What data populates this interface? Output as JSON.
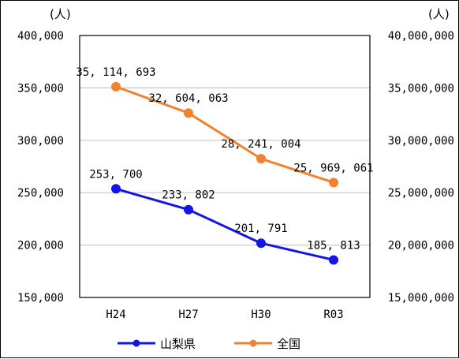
{
  "chart_data": {
    "type": "line",
    "categories": [
      "H24",
      "H27",
      "H30",
      "R03"
    ],
    "units": {
      "left": "(人)",
      "right": "(人)"
    },
    "y_left": {
      "lim": [
        150000,
        400000
      ],
      "ticks": [
        "150,000",
        "200,000",
        "250,000",
        "300,000",
        "350,000",
        "400,000"
      ]
    },
    "y_right": {
      "lim": [
        15000000,
        40000000
      ],
      "ticks": [
        "15,000,000",
        "20,000,000",
        "25,000,000",
        "30,000,000",
        "35,000,000",
        "40,000,000"
      ]
    },
    "grid": true,
    "legend_position": "bottom",
    "series": [
      {
        "name": "山梨県",
        "axis": "left",
        "color": "#1414e6",
        "values": [
          253700,
          233802,
          201791,
          185813
        ],
        "labels": [
          "253, 700",
          "233, 802",
          "201, 791",
          "185, 813"
        ]
      },
      {
        "name": "全国",
        "axis": "right",
        "color": "#f08232",
        "values": [
          35114693,
          32604063,
          28241004,
          25969061
        ],
        "labels": [
          "35, 114, 693",
          "32, 604, 063",
          "28, 241, 004",
          "25, 969, 061"
        ]
      }
    ]
  }
}
